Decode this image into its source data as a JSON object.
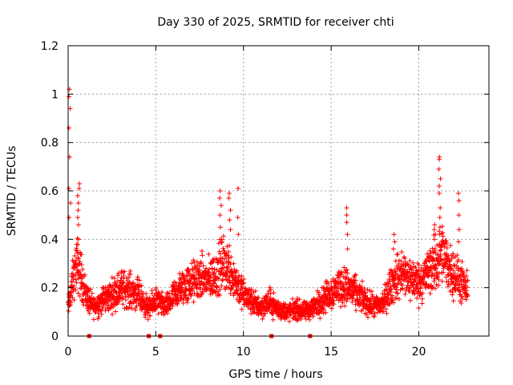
{
  "chart_data": {
    "type": "scatter",
    "title": "Day 330 of 2025, SRMTID for receiver chti",
    "xlabel": "GPS time / hours",
    "ylabel": "SRMTID / TECUs",
    "xlim": [
      0,
      24
    ],
    "ylim": [
      0,
      1.2
    ],
    "xticks": [
      0,
      5,
      10,
      15,
      20
    ],
    "xtick_labels": [
      "0",
      "5",
      "10",
      "15",
      "20"
    ],
    "yticks": [
      0,
      0.2,
      0.4,
      0.6,
      0.8,
      1.0,
      1.2
    ],
    "ytick_labels": [
      "0",
      "0.2",
      "0.4",
      "0.6",
      "0.8",
      "1",
      "1.2"
    ],
    "grid": true,
    "marker": "+",
    "color": "#ff0000",
    "series": [
      {
        "name": "SRMTID",
        "profile_x": [
          0,
          0.05,
          0.1,
          0.2,
          0.3,
          0.5,
          0.7,
          0.9,
          1.2,
          1.5,
          2.0,
          2.5,
          3.0,
          3.5,
          4.0,
          4.3,
          4.6,
          5.0,
          5.3,
          5.6,
          6.0,
          6.5,
          7.0,
          7.5,
          8.0,
          8.5,
          8.8,
          9.2,
          9.6,
          10.0,
          10.5,
          11.0,
          11.5,
          12.0,
          12.5,
          13.0,
          13.5,
          14.0,
          14.5,
          15.0,
          15.5,
          16.0,
          16.5,
          17.0,
          17.5,
          18.0,
          18.5,
          19.0,
          19.5,
          20.0,
          20.5,
          21.0,
          21.3,
          21.6,
          22.0,
          22.5,
          22.8
        ],
        "profile_y": [
          0.12,
          0.13,
          0.16,
          0.2,
          0.24,
          0.3,
          0.26,
          0.2,
          0.14,
          0.12,
          0.15,
          0.17,
          0.2,
          0.19,
          0.17,
          0.14,
          0.11,
          0.15,
          0.13,
          0.12,
          0.16,
          0.2,
          0.22,
          0.24,
          0.23,
          0.26,
          0.3,
          0.28,
          0.22,
          0.17,
          0.14,
          0.12,
          0.14,
          0.11,
          0.1,
          0.11,
          0.1,
          0.12,
          0.15,
          0.18,
          0.21,
          0.2,
          0.17,
          0.14,
          0.12,
          0.14,
          0.22,
          0.26,
          0.24,
          0.22,
          0.26,
          0.3,
          0.34,
          0.3,
          0.26,
          0.21,
          0.18
        ],
        "spikes": [
          {
            "x": 0.1,
            "values": [
              1.02,
              0.99,
              0.94,
              0.86,
              0.74,
              0.61,
              0.55,
              0.49
            ]
          },
          {
            "x": 0.6,
            "values": [
              0.63,
              0.61,
              0.58,
              0.55,
              0.52,
              0.49,
              0.46,
              0.4
            ]
          },
          {
            "x": 8.7,
            "values": [
              0.6,
              0.57,
              0.54,
              0.5,
              0.45,
              0.4
            ]
          },
          {
            "x": 9.2,
            "values": [
              0.59,
              0.57,
              0.52,
              0.48,
              0.44
            ]
          },
          {
            "x": 9.7,
            "values": [
              0.61,
              0.49,
              0.42
            ]
          },
          {
            "x": 15.9,
            "values": [
              0.53,
              0.5,
              0.47,
              0.42,
              0.36
            ]
          },
          {
            "x": 18.6,
            "values": [
              0.42,
              0.39,
              0.36
            ]
          },
          {
            "x": 20.9,
            "values": [
              0.46,
              0.44,
              0.42,
              0.4
            ]
          },
          {
            "x": 21.2,
            "values": [
              0.74,
              0.73,
              0.69,
              0.65,
              0.62,
              0.59,
              0.53,
              0.49,
              0.45
            ]
          },
          {
            "x": 22.3,
            "values": [
              0.59,
              0.56,
              0.5,
              0.44,
              0.39
            ]
          }
        ],
        "zero_markers_x": [
          1.2,
          4.6,
          5.25,
          11.6,
          13.8
        ]
      }
    ]
  }
}
